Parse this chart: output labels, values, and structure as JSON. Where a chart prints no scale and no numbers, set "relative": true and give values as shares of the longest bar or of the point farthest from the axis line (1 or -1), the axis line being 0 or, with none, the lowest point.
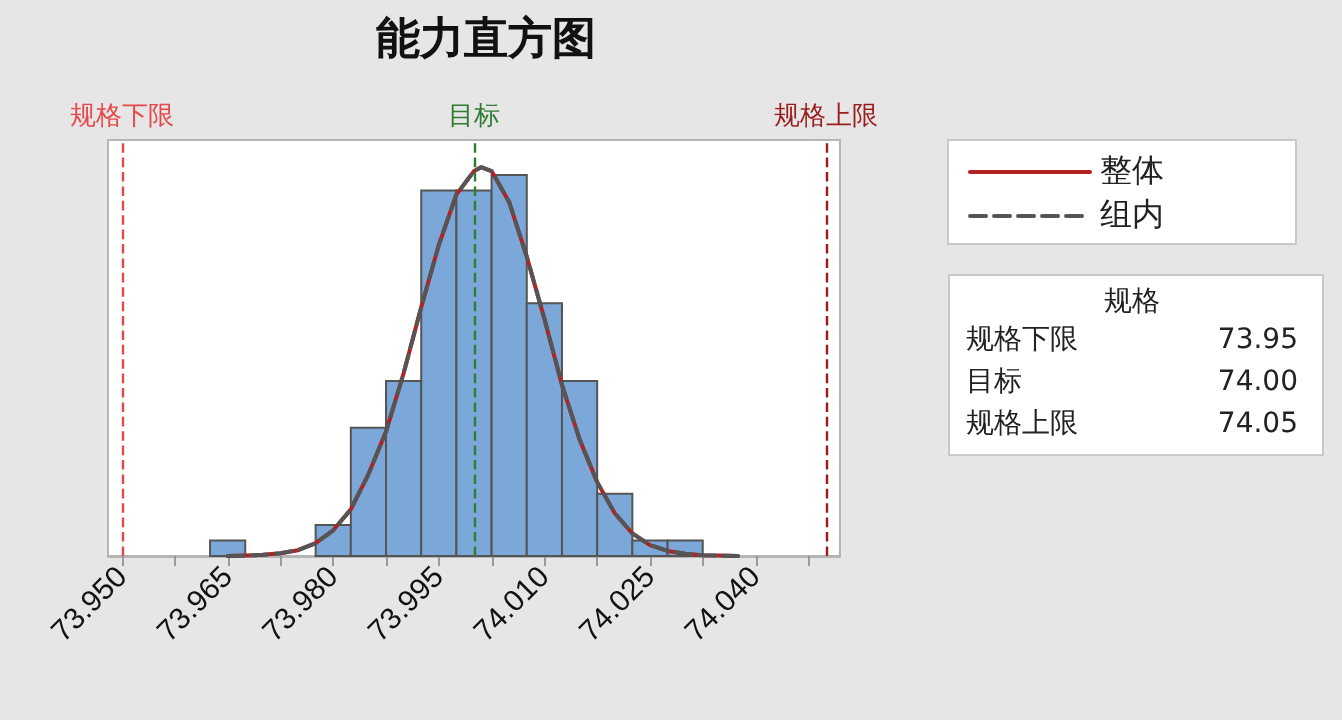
{
  "chart_data": {
    "type": "histogram",
    "title": "能力直方图",
    "relative": true,
    "tick_labels": "x",
    "legend": "right",
    "bins": [
      73.9625,
      73.9675,
      73.9725,
      73.9775,
      73.9825,
      73.9875,
      73.9925,
      73.9975,
      74.0025,
      74.0075,
      74.0125,
      74.0175,
      74.0225,
      74.0275,
      74.0325
    ],
    "values": [
      0.04,
      0,
      0,
      0.08,
      0.33,
      0.45,
      0.94,
      0.94,
      0.98,
      0.65,
      0.45,
      0.16,
      0.04,
      0.04
    ],
    "color": "#7ba7d9",
    "xlim": [
      73.948,
      74.052
    ],
    "xticks": [
      {
        "value": 73.95,
        "label": "73.950"
      },
      {
        "value": 73.9575,
        "label": null
      },
      {
        "value": 73.965,
        "label": "73.965"
      },
      {
        "value": 73.9725,
        "label": null
      },
      {
        "value": 73.98,
        "label": "73.980"
      },
      {
        "value": 73.9875,
        "label": null
      },
      {
        "value": 73.995,
        "label": "73.995"
      },
      {
        "value": 74.0025,
        "label": null
      },
      {
        "value": 74.01,
        "label": "74.010"
      },
      {
        "value": 74.0175,
        "label": null
      },
      {
        "value": 74.025,
        "label": "74.025"
      },
      {
        "value": 74.0325,
        "label": null
      },
      {
        "value": 74.04,
        "label": "74.040"
      },
      {
        "value": 74.0475,
        "label": null
      }
    ],
    "series": [
      {
        "name": "整体",
        "type": "line",
        "color": "#b22222",
        "line_style": "solid",
        "x": [
          73.965,
          73.9675,
          73.97,
          73.9725,
          73.975,
          73.9775,
          73.98,
          73.9825,
          73.985,
          73.9875,
          73.99,
          73.9925,
          73.995,
          73.9975,
          74.0,
          74.001,
          74.0025,
          74.005,
          74.0075,
          74.01,
          74.0125,
          74.015,
          74.0175,
          74.02,
          74.0225,
          74.025,
          74.0275,
          74.03,
          74.0325,
          74.035,
          74.0375
        ],
        "values": [
          0.0,
          0.001,
          0.003,
          0.007,
          0.015,
          0.033,
          0.066,
          0.12,
          0.21,
          0.32,
          0.47,
          0.64,
          0.8,
          0.93,
          0.99,
          1,
          0.99,
          0.91,
          0.77,
          0.61,
          0.44,
          0.3,
          0.19,
          0.11,
          0.058,
          0.028,
          0.013,
          0.006,
          0.002,
          0.001,
          0.0
        ]
      },
      {
        "name": "组内",
        "type": "line",
        "color": "#555555",
        "line_style": "dashed",
        "x": [
          73.965,
          73.9675,
          73.97,
          73.9725,
          73.975,
          73.9775,
          73.98,
          73.9825,
          73.985,
          73.9875,
          73.99,
          73.9925,
          73.995,
          73.9975,
          74.0,
          74.001,
          74.0025,
          74.005,
          74.0075,
          74.01,
          74.0125,
          74.015,
          74.0175,
          74.02,
          74.0225,
          74.025,
          74.0275,
          74.03,
          74.0325,
          74.035,
          74.0375
        ],
        "values": [
          0.0,
          0.001,
          0.003,
          0.007,
          0.015,
          0.033,
          0.066,
          0.12,
          0.21,
          0.32,
          0.47,
          0.64,
          0.8,
          0.93,
          0.99,
          1,
          0.99,
          0.91,
          0.77,
          0.61,
          0.44,
          0.3,
          0.19,
          0.11,
          0.058,
          0.028,
          0.013,
          0.006,
          0.002,
          0.001,
          0.0
        ]
      }
    ],
    "ref_lines": [
      {
        "axis": "x",
        "value": 73.95,
        "label": "规格下限",
        "color": "#e8474a",
        "line_style": "dashed"
      },
      {
        "axis": "x",
        "value": 74.0,
        "label": "目标",
        "color": "#2e7d32",
        "line_style": "dashed"
      },
      {
        "axis": "x",
        "value": 74.05,
        "label": "规格上限",
        "color": "#9b1c1c",
        "line_style": "dashed"
      }
    ],
    "annotations": [
      "规格",
      "规格下限",
      "73.95",
      "目标",
      "74.00",
      "规格上限",
      "74.05"
    ]
  }
}
